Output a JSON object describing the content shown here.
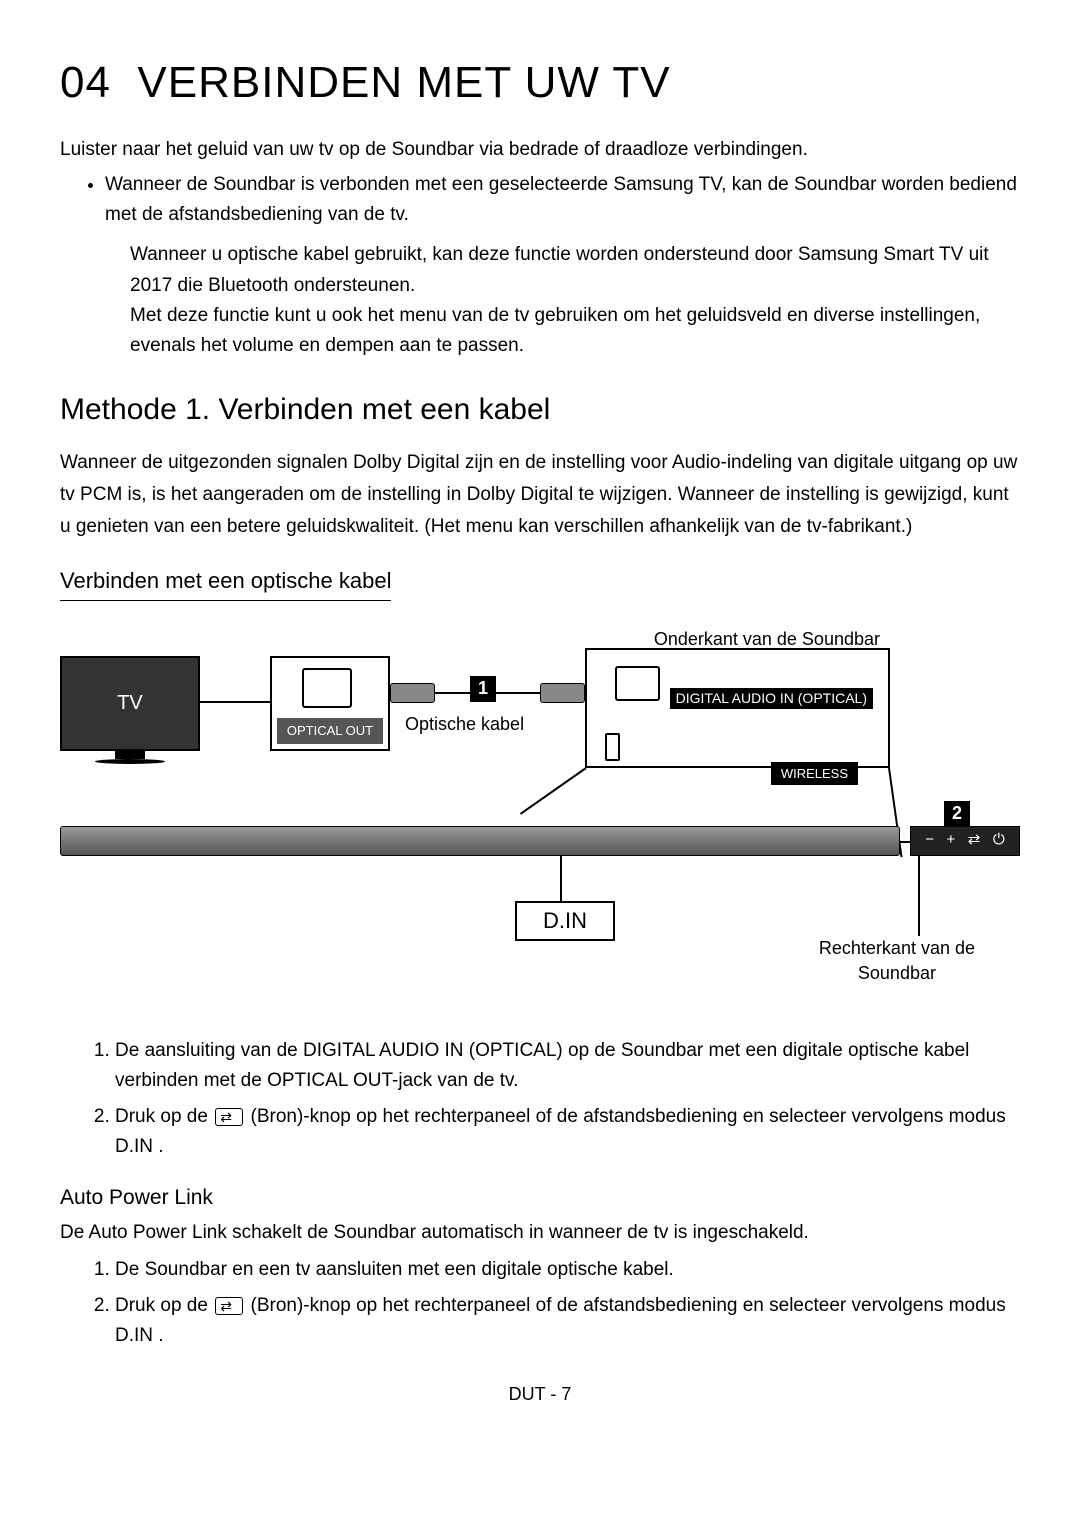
{
  "section_number": "04",
  "section_title": "VERBINDEN MET UW TV",
  "intro": "Luister naar het geluid van uw tv op de Soundbar via bedrade of draadloze verbindingen.",
  "bullet_1": "Wanneer de Soundbar is verbonden met een geselecteerde Samsung TV, kan de Soundbar worden bediend met de afstandsbediening van de tv.",
  "note_1": "Wanneer u optische kabel gebruikt, kan deze functie worden ondersteund door Samsung Smart TV uit 2017 die Bluetooth ondersteunen.",
  "note_2": "Met deze functie kunt u ook het menu van de tv gebruiken om het geluidsveld en diverse instellingen, evenals het volume en dempen aan te passen.",
  "method_title": "Methode 1. Verbinden met een kabel",
  "method_body": "Wanneer de uitgezonden signalen Dolby Digital zijn en de instelling voor  Audio-indeling van digitale uitgang  op uw tv PCM is, is het aangeraden om de instelling in Dolby Digital te wijzigen. Wanneer de instelling is gewijzigd, kunt u genieten van een betere geluidskwaliteit. (Het menu kan verschillen afhankelijk van de tv-fabrikant.)",
  "sub_section": "Verbinden met een optische kabel",
  "diagram": {
    "top_label": "Onderkant van de Soundbar",
    "tv_label": "TV",
    "optical_out": "OPTICAL OUT",
    "cable_label": "Optische kabel",
    "digital_audio_in": "DIGITAL AUDIO IN (OPTICAL)",
    "wireless": "WIRELESS",
    "step_1": "1",
    "step_2": "2",
    "din": "D.IN",
    "right_caption_1": "Rechterkant van de",
    "right_caption_2": "Soundbar",
    "panel_minus": "−",
    "panel_plus": "+",
    "panel_power": "⏻"
  },
  "steps_a": {
    "s1_part1": "De aansluiting van de",
    "s1_bold": "DIGITAL AUDIO IN (OPTICAL)",
    "s1_part2": " op de Soundbar met een digitale optische kabel verbinden met de OPTICAL OUT-jack van de tv.",
    "s2_part1": "Druk op de",
    "s2_part2": "(Bron)-knop op het rechterpaneel of de afstandsbediening en selecteer vervolgens modus  D.IN ."
  },
  "auto_power": {
    "title": "Auto Power Link",
    "desc": "De Auto Power Link schakelt de Soundbar automatisch in wanneer de tv is ingeschakeld.",
    "s1": "De Soundbar en een tv aansluiten met een digitale optische kabel.",
    "s2_part1": "Druk op de",
    "s2_part2": "(Bron)-knop op het rechterpaneel of de afstandsbediening en selecteer vervolgens modus  D.IN ."
  },
  "footer": "DUT - 7"
}
